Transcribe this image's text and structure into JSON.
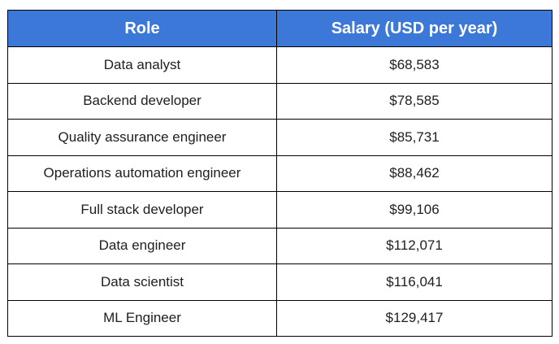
{
  "table": {
    "headers": {
      "role": "Role",
      "salary": "Salary (USD per year)"
    },
    "rows": [
      {
        "role": "Data analyst",
        "salary": "$68,583"
      },
      {
        "role": "Backend developer",
        "salary": "$78,585"
      },
      {
        "role": "Quality assurance engineer",
        "salary": "$85,731"
      },
      {
        "role": "Operations automation engineer",
        "salary": "$88,462"
      },
      {
        "role": "Full stack developer",
        "salary": "$99,106"
      },
      {
        "role": "Data engineer",
        "salary": "$112,071"
      },
      {
        "role": "Data scientist",
        "salary": "$116,041"
      },
      {
        "role": "ML Engineer",
        "salary": "$129,417"
      }
    ]
  },
  "colors": {
    "header_bg": "#3c78d8",
    "header_text": "#ffffff",
    "border": "#000000"
  }
}
